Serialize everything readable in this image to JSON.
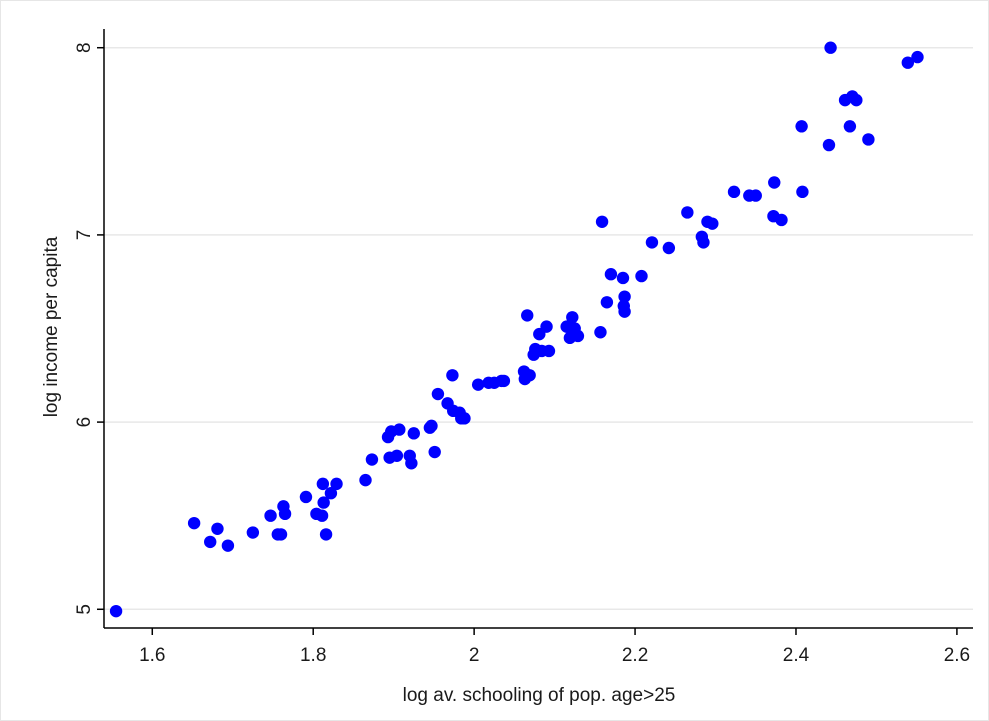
{
  "chart_data": {
    "type": "scatter",
    "title": "",
    "xlabel": "log av. schooling of pop. age>25",
    "ylabel": "log income per capita",
    "xlim": [
      1.54,
      2.62
    ],
    "ylim": [
      4.9,
      8.1
    ],
    "xticks": [
      1.6,
      1.8,
      2,
      2.2,
      2.4,
      2.6
    ],
    "yticks": [
      5,
      6,
      7,
      8
    ],
    "xtick_labels": [
      "1.6",
      "1.8",
      "2",
      "2.2",
      "2.4",
      "2.6"
    ],
    "ytick_labels": [
      "5",
      "6",
      "7",
      "8"
    ],
    "grid": "horizontal",
    "marker_color": "#0000ff",
    "gridline_color": "#e8e8e8",
    "axis_color": "#000000",
    "series": [
      {
        "points": [
          [
            1.555,
            4.99
          ],
          [
            1.652,
            5.46
          ],
          [
            1.672,
            5.36
          ],
          [
            1.681,
            5.43
          ],
          [
            1.694,
            5.34
          ],
          [
            1.725,
            5.41
          ],
          [
            1.747,
            5.5
          ],
          [
            1.756,
            5.4
          ],
          [
            1.76,
            5.4
          ],
          [
            1.763,
            5.55
          ],
          [
            1.765,
            5.51
          ],
          [
            1.791,
            5.6
          ],
          [
            1.804,
            5.51
          ],
          [
            1.811,
            5.5
          ],
          [
            1.812,
            5.67
          ],
          [
            1.813,
            5.57
          ],
          [
            1.816,
            5.4
          ],
          [
            1.822,
            5.62
          ],
          [
            1.829,
            5.67
          ],
          [
            1.865,
            5.69
          ],
          [
            1.873,
            5.8
          ],
          [
            1.893,
            5.92
          ],
          [
            1.895,
            5.81
          ],
          [
            1.897,
            5.95
          ],
          [
            1.904,
            5.82
          ],
          [
            1.907,
            5.96
          ],
          [
            1.92,
            5.82
          ],
          [
            1.922,
            5.78
          ],
          [
            1.925,
            5.94
          ],
          [
            1.945,
            5.97
          ],
          [
            1.947,
            5.98
          ],
          [
            1.951,
            5.84
          ],
          [
            1.955,
            6.15
          ],
          [
            1.967,
            6.1
          ],
          [
            1.973,
            6.25
          ],
          [
            1.974,
            6.06
          ],
          [
            1.982,
            6.05
          ],
          [
            1.984,
            6.02
          ],
          [
            1.988,
            6.02
          ],
          [
            2.005,
            6.2
          ],
          [
            2.018,
            6.21
          ],
          [
            2.025,
            6.21
          ],
          [
            2.034,
            6.22
          ],
          [
            2.037,
            6.22
          ],
          [
            2.062,
            6.27
          ],
          [
            2.063,
            6.23
          ],
          [
            2.066,
            6.57
          ],
          [
            2.069,
            6.25
          ],
          [
            2.074,
            6.36
          ],
          [
            2.076,
            6.39
          ],
          [
            2.081,
            6.47
          ],
          [
            2.084,
            6.38
          ],
          [
            2.09,
            6.51
          ],
          [
            2.093,
            6.38
          ],
          [
            2.115,
            6.51
          ],
          [
            2.119,
            6.45
          ],
          [
            2.122,
            6.56
          ],
          [
            2.125,
            6.5
          ],
          [
            2.129,
            6.46
          ],
          [
            2.157,
            6.48
          ],
          [
            2.159,
            7.07
          ],
          [
            2.165,
            6.64
          ],
          [
            2.17,
            6.79
          ],
          [
            2.185,
            6.77
          ],
          [
            2.186,
            6.62
          ],
          [
            2.187,
            6.59
          ],
          [
            2.187,
            6.67
          ],
          [
            2.208,
            6.78
          ],
          [
            2.221,
            6.96
          ],
          [
            2.242,
            6.93
          ],
          [
            2.265,
            7.12
          ],
          [
            2.283,
            6.99
          ],
          [
            2.285,
            6.96
          ],
          [
            2.29,
            7.07
          ],
          [
            2.296,
            7.06
          ],
          [
            2.323,
            7.23
          ],
          [
            2.342,
            7.21
          ],
          [
            2.35,
            7.21
          ],
          [
            2.372,
            7.1
          ],
          [
            2.373,
            7.28
          ],
          [
            2.382,
            7.08
          ],
          [
            2.407,
            7.58
          ],
          [
            2.408,
            7.23
          ],
          [
            2.441,
            7.48
          ],
          [
            2.443,
            8.0
          ],
          [
            2.461,
            7.72
          ],
          [
            2.467,
            7.58
          ],
          [
            2.47,
            7.74
          ],
          [
            2.475,
            7.72
          ],
          [
            2.49,
            7.51
          ],
          [
            2.539,
            7.92
          ],
          [
            2.551,
            7.95
          ]
        ]
      }
    ]
  }
}
